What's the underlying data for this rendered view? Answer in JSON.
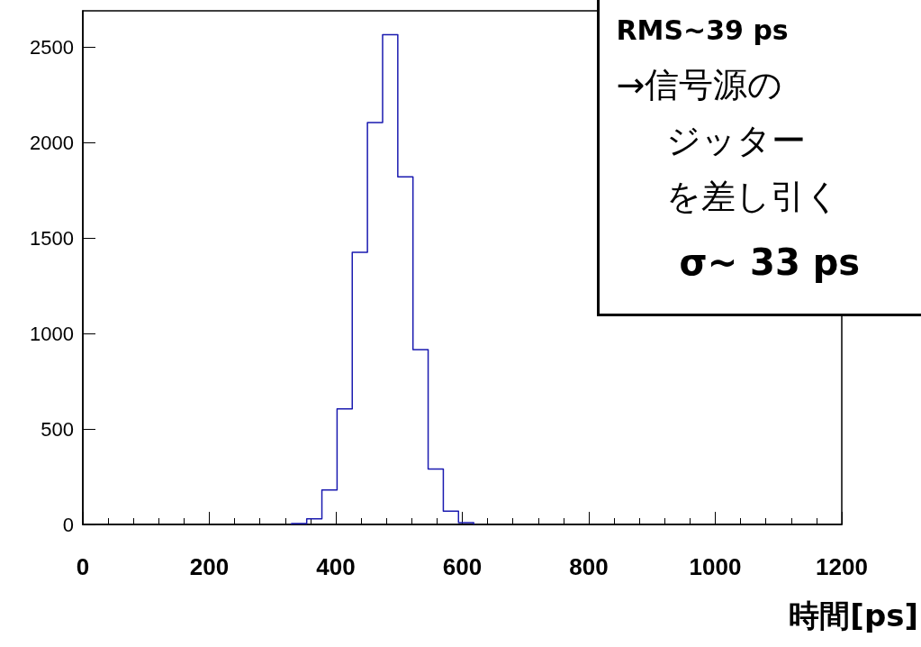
{
  "chart_data": {
    "type": "histogram",
    "xlabel": "時間[ps]",
    "bins": [
      330,
      354,
      378,
      402,
      426,
      450,
      474,
      498,
      522,
      546,
      570,
      594,
      618
    ],
    "values": [
      5,
      30,
      180,
      605,
      1425,
      2105,
      2565,
      1820,
      915,
      290,
      70,
      10
    ],
    "color": "#1a1ab0",
    "xlim": [
      0,
      1200
    ],
    "xticks": [
      0,
      200,
      400,
      600,
      800,
      1000,
      1200
    ],
    "ylim": [
      0,
      2690
    ],
    "yticks": [
      0,
      500,
      1000,
      1500,
      2000,
      2500
    ],
    "grid": false,
    "annotations": [
      "RMS~39 ps",
      "→信号源の",
      "ジッター",
      "を差し引く",
      "σ~ 33 ps"
    ]
  }
}
